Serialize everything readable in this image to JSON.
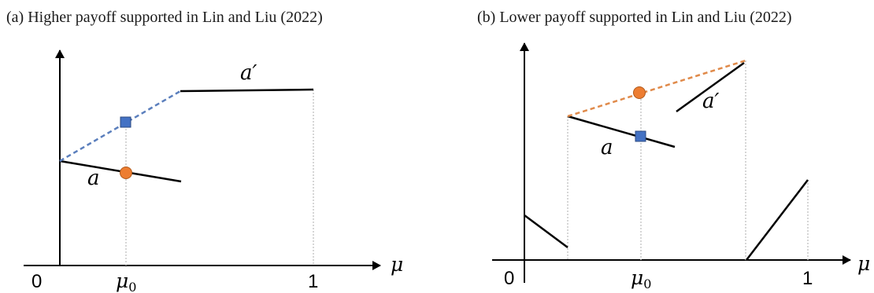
{
  "panel_a": {
    "caption": "(a) Higher payoff supported in Lin and Liu (2022)",
    "axis_label": "μ",
    "tick_zero": "0",
    "tick_mu0_base": "μ",
    "tick_mu0_sub": "0",
    "tick_one": "1",
    "curve_a_label": "a",
    "curve_a_prime_label": "a′",
    "dashed_color": "#5b7fbd",
    "marker_square_color": "#4472c4",
    "marker_circle_color": "#ed7d31"
  },
  "panel_b": {
    "caption": "(b) Lower payoff supported in Lin and Liu (2022)",
    "axis_label": "μ",
    "tick_zero": "0",
    "tick_mu0_base": "μ",
    "tick_mu0_sub": "0",
    "tick_one": "1",
    "curve_a_label": "a",
    "curve_a_prime_label": "a′",
    "dashed_color": "#e08a4a",
    "marker_square_color": "#4472c4",
    "marker_circle_color": "#ed7d31"
  }
}
